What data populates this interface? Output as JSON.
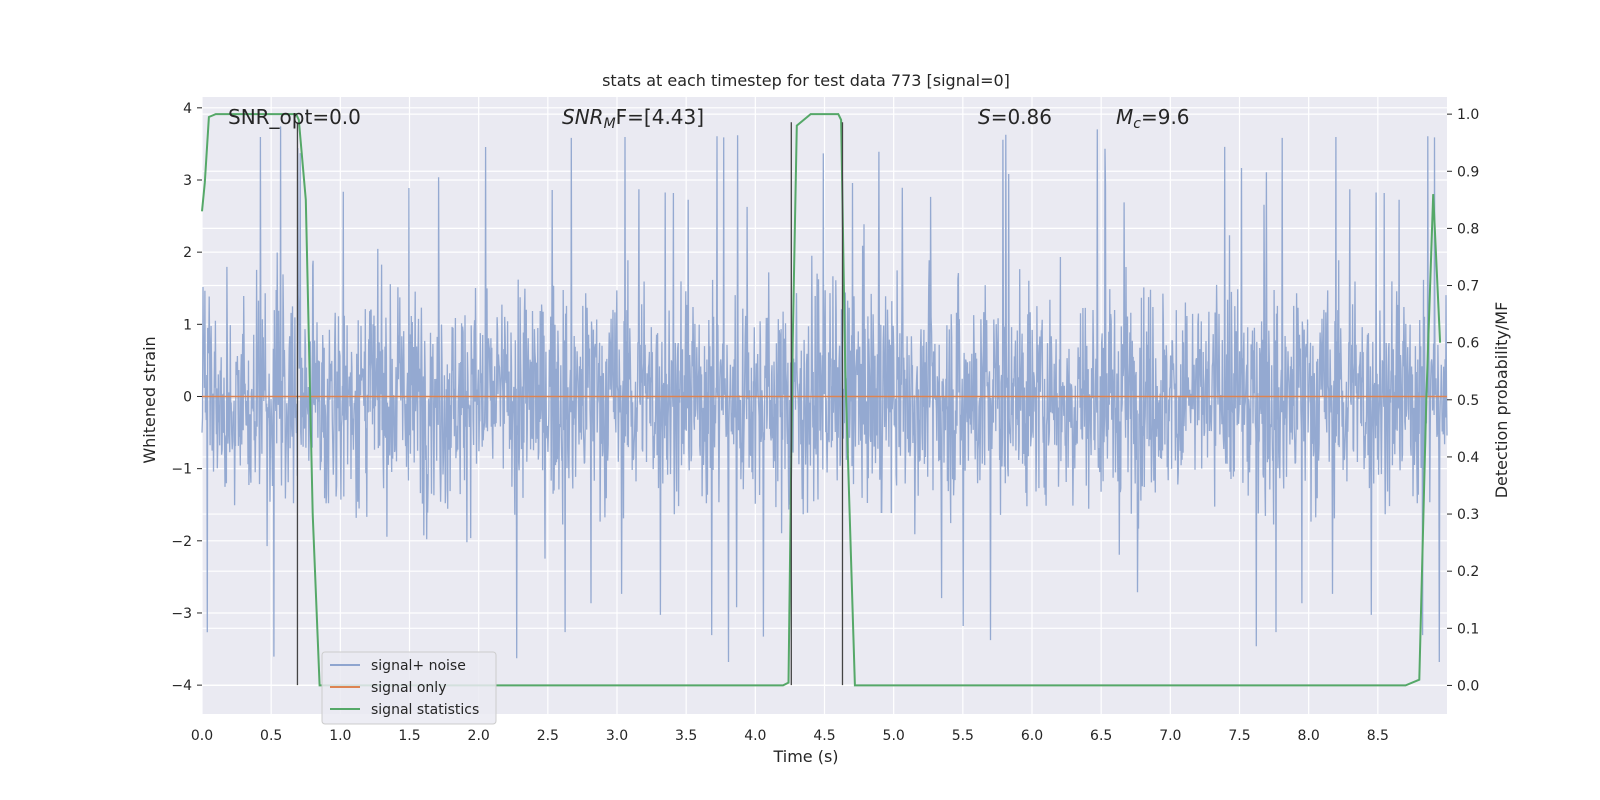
{
  "chart_data": {
    "type": "line",
    "title": "stats at each timestep for test data 773 [signal=0]",
    "xlabel": "Time (s)",
    "ylabel_left": "Whitened strain",
    "ylabel_right": "Detection probability/MF",
    "xlim": [
      0.0,
      9.0
    ],
    "ylim_left": [
      -4.4,
      4.15
    ],
    "ylim_right": [
      -0.05,
      1.03
    ],
    "x_ticks": [
      "0.0",
      "0.5",
      "1.0",
      "1.5",
      "2.0",
      "2.5",
      "3.0",
      "3.5",
      "4.0",
      "4.5",
      "5.0",
      "5.5",
      "6.0",
      "6.5",
      "7.0",
      "7.5",
      "8.0",
      "8.5"
    ],
    "y_left_ticks": [
      "−4",
      "−3",
      "−2",
      "−1",
      "0",
      "1",
      "2",
      "3",
      "4"
    ],
    "y_right_ticks": [
      "0.0",
      "0.1",
      "0.2",
      "0.3",
      "0.4",
      "0.5",
      "0.6",
      "0.7",
      "0.8",
      "0.9",
      "1.0"
    ],
    "grid": true,
    "legend_position": "lower-left",
    "colors": {
      "noise": "#8fa5cf",
      "signal_only": "#dd8452",
      "statistics": "#55a868",
      "vlines": "#444444",
      "background": "#eaeaf2"
    },
    "annotations": {
      "snr_opt": "SNR_opt=0.0",
      "snr_mf_prefix": "SNR",
      "snr_mf_sub": "M",
      "snr_mf_suffix": "F=[4.43]",
      "s_prefix": "S",
      "s_value": "=0.86",
      "mc_prefix": "M",
      "mc_sub": "c",
      "mc_value": "=9.6"
    },
    "series": [
      {
        "name": "signal+ noise",
        "axis": "left",
        "description_kind": "noise",
        "amplitude_typical": 1.4,
        "amplitude_extreme": 3.8
      },
      {
        "name": "signal only",
        "axis": "left",
        "x": [
          0.0,
          9.0
        ],
        "y": [
          0.0,
          0.0
        ]
      },
      {
        "name": "signal statistics",
        "axis": "right",
        "x": [
          0.0,
          0.02,
          0.05,
          0.1,
          0.2,
          0.3,
          0.4,
          0.5,
          0.6,
          0.68,
          0.7,
          0.75,
          0.8,
          0.85,
          1.0,
          2.0,
          3.0,
          4.0,
          4.2,
          4.24,
          4.27,
          4.3,
          4.4,
          4.5,
          4.6,
          4.62,
          4.65,
          4.72,
          4.8,
          5.0,
          6.0,
          7.0,
          8.0,
          8.7,
          8.8,
          8.85,
          8.9,
          8.95
        ],
        "y": [
          0.83,
          0.88,
          0.995,
          1.0,
          1.0,
          1.0,
          1.0,
          1.0,
          1.0,
          1.0,
          0.99,
          0.85,
          0.3,
          0.0,
          0.0,
          0.0,
          0.0,
          0.0,
          0.0,
          0.005,
          0.6,
          0.98,
          1.0,
          1.0,
          1.0,
          0.99,
          0.55,
          0.0,
          0.0,
          0.0,
          0.0,
          0.0,
          0.0,
          0.0,
          0.01,
          0.5,
          0.86,
          0.6
        ]
      }
    ],
    "vlines_x": [
      0.69,
      4.26,
      4.63
    ],
    "vlines_range_left": [
      -4.0,
      3.8
    ]
  },
  "legend": {
    "items": [
      {
        "label": "signal+ noise"
      },
      {
        "label": "signal only"
      },
      {
        "label": "signal statistics"
      }
    ]
  }
}
